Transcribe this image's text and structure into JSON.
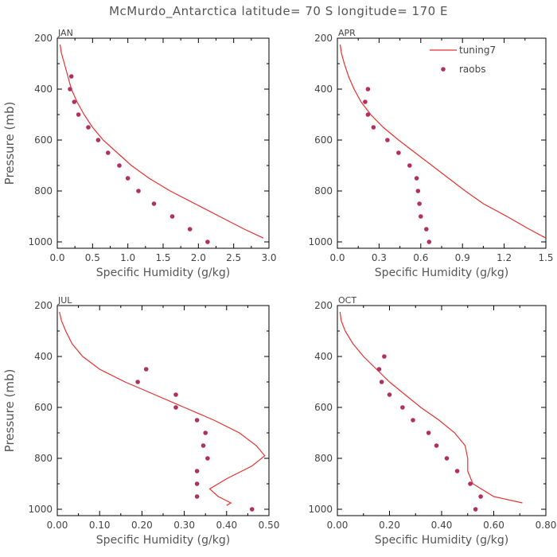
{
  "title": "McMurdo_Antarctica  latitude= 70 S longitude= 170 E",
  "legend": {
    "items": [
      {
        "label": "tuning7",
        "kind": "line",
        "color": "#e8312f"
      },
      {
        "label": "raobs",
        "kind": "marker",
        "color": "#b03060"
      }
    ]
  },
  "chart_data": [
    {
      "type": "line",
      "panel": "JAN",
      "xlabel": "Specific Humidity (g/kg)",
      "ylabel": "Pressure (mb)",
      "xlim": [
        0,
        3.0
      ],
      "ylim": [
        200,
        1025
      ],
      "xticks": [
        "0.0",
        "0.5",
        "1.0",
        "1.5",
        "2.0",
        "2.5",
        "3.0"
      ],
      "xtick_values": [
        0,
        0.5,
        1.0,
        1.5,
        2.0,
        2.5,
        3.0
      ],
      "yticks": [
        200,
        400,
        600,
        800,
        1000
      ],
      "series": [
        {
          "name": "tuning7",
          "x": [
            0.04,
            0.06,
            0.1,
            0.15,
            0.2,
            0.28,
            0.38,
            0.5,
            0.65,
            0.85,
            1.05,
            1.3,
            1.6,
            1.95,
            2.3,
            2.65,
            2.92
          ],
          "y": [
            225,
            260,
            300,
            350,
            400,
            450,
            500,
            550,
            600,
            650,
            700,
            750,
            800,
            850,
            900,
            950,
            985
          ]
        },
        {
          "name": "raobs",
          "x": [
            0.2,
            0.18,
            0.24,
            0.3,
            0.44,
            0.58,
            0.72,
            0.88,
            1.0,
            1.15,
            1.37,
            1.63,
            1.88,
            2.13
          ],
          "y": [
            350,
            400,
            450,
            500,
            550,
            600,
            650,
            700,
            750,
            800,
            850,
            900,
            950,
            1000
          ]
        }
      ]
    },
    {
      "type": "line",
      "panel": "APR",
      "xlabel": "Specific Humidity (g/kg)",
      "ylabel": "",
      "xlim": [
        0,
        1.5
      ],
      "ylim": [
        200,
        1025
      ],
      "xticks": [
        "0.0",
        "0.3",
        "0.6",
        "0.9",
        "1.2",
        "1.5"
      ],
      "xtick_values": [
        0,
        0.3,
        0.6,
        0.9,
        1.2,
        1.5
      ],
      "yticks": [
        200,
        400,
        600,
        800,
        1000
      ],
      "series": [
        {
          "name": "tuning7",
          "x": [
            0.02,
            0.03,
            0.05,
            0.08,
            0.12,
            0.17,
            0.24,
            0.33,
            0.44,
            0.56,
            0.68,
            0.8,
            0.92,
            1.05,
            1.22,
            1.38,
            1.5
          ],
          "y": [
            225,
            260,
            300,
            350,
            400,
            450,
            500,
            550,
            600,
            650,
            700,
            750,
            800,
            850,
            900,
            950,
            985
          ]
        },
        {
          "name": "raobs",
          "x": [
            0.22,
            0.2,
            0.22,
            0.26,
            0.36,
            0.44,
            0.52,
            0.57,
            0.58,
            0.59,
            0.6,
            0.64,
            0.66
          ],
          "y": [
            400,
            450,
            500,
            550,
            600,
            650,
            700,
            750,
            800,
            850,
            900,
            950,
            1000
          ]
        }
      ]
    },
    {
      "type": "line",
      "panel": "JUL",
      "xlabel": "Specific Humidity (g/kg)",
      "ylabel": "Pressure (mb)",
      "xlim": [
        0,
        0.5
      ],
      "ylim": [
        200,
        1025
      ],
      "xticks": [
        "0.00",
        "0.10",
        "0.20",
        "0.30",
        "0.40",
        "0.50"
      ],
      "xtick_values": [
        0,
        0.1,
        0.2,
        0.3,
        0.4,
        0.5
      ],
      "yticks": [
        200,
        400,
        600,
        800,
        1000
      ],
      "series": [
        {
          "name": "tuning7",
          "x": [
            0.005,
            0.01,
            0.02,
            0.035,
            0.06,
            0.1,
            0.16,
            0.23,
            0.3,
            0.37,
            0.43,
            0.47,
            0.49,
            0.46,
            0.4,
            0.36,
            0.38,
            0.41,
            0.4
          ],
          "y": [
            225,
            260,
            300,
            350,
            400,
            450,
            500,
            550,
            600,
            650,
            700,
            750,
            790,
            830,
            880,
            920,
            950,
            975,
            985
          ]
        },
        {
          "name": "raobs",
          "x": [
            0.21,
            0.19,
            0.28,
            0.28,
            0.33,
            0.35,
            0.345,
            0.355,
            0.33,
            0.33,
            0.33,
            0.46
          ],
          "y": [
            450,
            500,
            550,
            600,
            650,
            700,
            750,
            800,
            850,
            900,
            950,
            1000
          ]
        }
      ]
    },
    {
      "type": "line",
      "panel": "OCT",
      "xlabel": "Specific Humidity (g/kg)",
      "ylabel": "",
      "xlim": [
        0,
        0.8
      ],
      "ylim": [
        200,
        1025
      ],
      "xticks": [
        "0.00",
        "0.20",
        "0.40",
        "0.60",
        "0.80"
      ],
      "xtick_values": [
        0,
        0.2,
        0.4,
        0.6,
        0.8
      ],
      "yticks": [
        200,
        400,
        600,
        800,
        1000
      ],
      "series": [
        {
          "name": "tuning7",
          "x": [
            0.01,
            0.015,
            0.03,
            0.06,
            0.1,
            0.15,
            0.2,
            0.26,
            0.32,
            0.39,
            0.45,
            0.49,
            0.5,
            0.5,
            0.52,
            0.6,
            0.71
          ],
          "y": [
            225,
            260,
            300,
            350,
            400,
            450,
            500,
            550,
            600,
            650,
            700,
            750,
            800,
            850,
            900,
            950,
            975
          ]
        },
        {
          "name": "raobs",
          "x": [
            0.18,
            0.16,
            0.17,
            0.2,
            0.25,
            0.29,
            0.35,
            0.38,
            0.42,
            0.46,
            0.51,
            0.55,
            0.53
          ],
          "y": [
            400,
            450,
            500,
            550,
            600,
            650,
            700,
            750,
            800,
            850,
            900,
            950,
            1000
          ]
        }
      ]
    }
  ]
}
